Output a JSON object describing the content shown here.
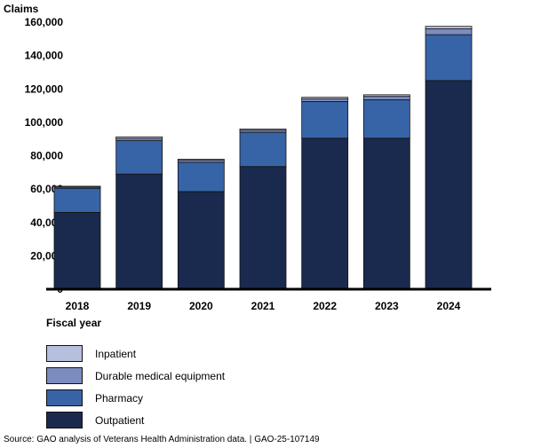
{
  "chart_data": {
    "type": "bar",
    "stacked": true,
    "ylabel": "Claims",
    "xlabel": "Fiscal year",
    "ylim": [
      0,
      160000
    ],
    "yticks": [
      0,
      20000,
      40000,
      60000,
      80000,
      100000,
      120000,
      140000,
      160000
    ],
    "ytick_labels": [
      "0",
      "20,000",
      "40,000",
      "60,000",
      "80,000",
      "100,000",
      "120,000",
      "140,000",
      "160,000"
    ],
    "categories": [
      "2018",
      "2019",
      "2020",
      "2021",
      "2022",
      "2023",
      "2024"
    ],
    "series": [
      {
        "name": "Outpatient",
        "color": "#1a2a4e",
        "values": [
          46000,
          69000,
          58500,
          73500,
          90500,
          90500,
          125000
        ]
      },
      {
        "name": "Pharmacy",
        "color": "#3764a6",
        "values": [
          14500,
          20000,
          17500,
          20500,
          22000,
          23000,
          27500
        ]
      },
      {
        "name": "Durable medical equipment",
        "color": "#7b8cc0",
        "values": [
          700,
          1300,
          1200,
          1200,
          1500,
          2000,
          3500
        ]
      },
      {
        "name": "Inpatient",
        "color": "#b7bfdf",
        "values": [
          500,
          1000,
          700,
          800,
          1000,
          1000,
          1500
        ]
      }
    ],
    "legend_order": [
      "Inpatient",
      "Durable medical equipment",
      "Pharmacy",
      "Outpatient"
    ],
    "grid": false,
    "legend_position": "bottom-left"
  },
  "source_text": "Source: GAO analysis of Veterans Health Administration data.  |  GAO-25-107149"
}
